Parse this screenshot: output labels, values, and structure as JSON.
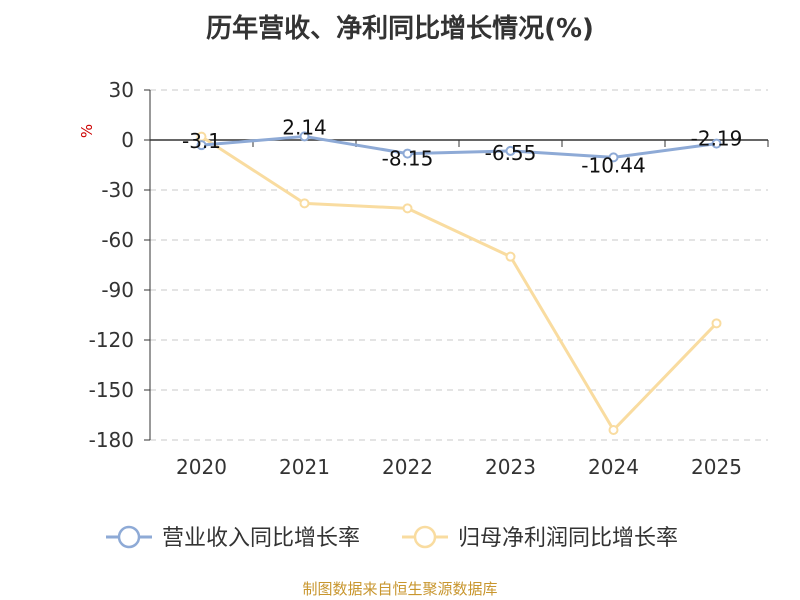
{
  "chart_data": {
    "type": "line",
    "title": "历年营收、净利同比增长情况(%)",
    "ylabel": "%",
    "categories": [
      "2020",
      "2021",
      "2022",
      "2023",
      "2024",
      "2025"
    ],
    "ylim": [
      -180,
      30
    ],
    "yticks": [
      30,
      0,
      -30,
      -60,
      -90,
      -120,
      -150,
      -180
    ],
    "grid": true,
    "legend_position": "bottom",
    "series": [
      {
        "name": "营业收入同比增长率",
        "color": "#8eaad6",
        "values": [
          -3.1,
          2.14,
          -8.15,
          -6.55,
          -10.44,
          -2.19
        ],
        "labels": [
          "-3.1",
          "2.14",
          "-8.15",
          "-6.55",
          "-10.44",
          "-2.19"
        ]
      },
      {
        "name": "归母净利润同比增长率",
        "color": "#f9dca0",
        "values": [
          2,
          -38,
          -41,
          -70,
          -174,
          -110
        ]
      }
    ]
  },
  "source": "制图数据来自恒生聚源数据库",
  "colors": {
    "ylabel": "#cc0000",
    "source": "#c8962e"
  }
}
